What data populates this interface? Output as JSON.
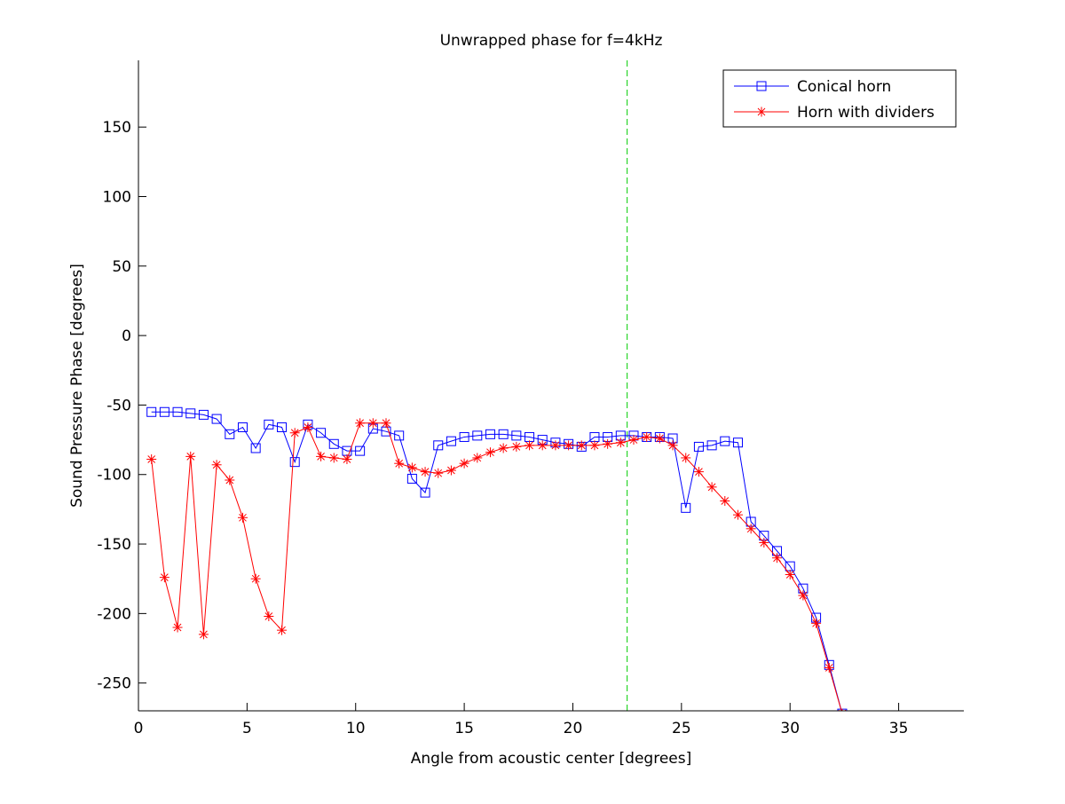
{
  "chart_data": {
    "type": "line",
    "title": "Unwrapped phase for f=4kHz",
    "xlabel": "Angle from acoustic center [degrees]",
    "ylabel": "Sound Pressure Phase [degrees]",
    "xlim": [
      0,
      38
    ],
    "ylim": [
      -270,
      198
    ],
    "xticks": [
      0,
      5,
      10,
      15,
      20,
      25,
      30,
      35
    ],
    "yticks": [
      -250,
      -200,
      -150,
      -100,
      -50,
      0,
      50,
      100,
      150
    ],
    "grid": false,
    "legend_position": "top-right",
    "vline": {
      "x": 22.5,
      "color": "#00cc00",
      "style": "dashed"
    },
    "series": [
      {
        "name": "Conical horn",
        "color": "#0000ff",
        "marker": "square",
        "x": [
          0.6,
          1.2,
          1.8,
          2.4,
          3.0,
          3.6,
          4.2,
          4.8,
          5.4,
          6.0,
          6.6,
          7.2,
          7.8,
          8.4,
          9.0,
          9.6,
          10.2,
          10.8,
          11.4,
          12.0,
          12.6,
          13.2,
          13.8,
          14.4,
          15.0,
          15.6,
          16.2,
          16.8,
          17.4,
          18.0,
          18.6,
          19.2,
          19.8,
          20.4,
          21.0,
          21.6,
          22.2,
          22.8,
          23.4,
          24.0,
          24.6,
          25.2,
          25.8,
          26.4,
          27.0,
          27.6,
          28.2,
          28.8,
          29.4,
          30.0,
          30.6,
          31.2,
          31.8,
          32.4
        ],
        "values": [
          -55,
          -55,
          -55,
          -56,
          -57,
          -60,
          -71,
          -66,
          -81,
          -64,
          -66,
          -91,
          -64,
          -70,
          -78,
          -83,
          -83,
          -67,
          -69,
          -72,
          -103,
          -113,
          -79,
          -76,
          -73,
          -72,
          -71,
          -71,
          -72,
          -73,
          -75,
          -77,
          -78,
          -80,
          -73,
          -73,
          -72,
          -72,
          -73,
          -73,
          -74,
          -124,
          -80,
          -79,
          -76,
          -77,
          -134,
          -144,
          -155,
          -166,
          -182,
          -203,
          -237,
          -272
        ]
      },
      {
        "name": "Horn with dividers",
        "color": "#ff0000",
        "marker": "star",
        "x": [
          0.6,
          1.2,
          1.8,
          2.4,
          3.0,
          3.6,
          4.2,
          4.8,
          5.4,
          6.0,
          6.6,
          7.2,
          7.8,
          8.4,
          9.0,
          9.6,
          10.2,
          10.8,
          11.4,
          12.0,
          12.6,
          13.2,
          13.8,
          14.4,
          15.0,
          15.6,
          16.2,
          16.8,
          17.4,
          18.0,
          18.6,
          19.2,
          19.8,
          20.4,
          21.0,
          21.6,
          22.2,
          22.8,
          23.4,
          24.0,
          24.6,
          25.2,
          25.8,
          26.4,
          27.0,
          27.6,
          28.2,
          28.8,
          29.4,
          30.0,
          30.6,
          31.2,
          31.8,
          32.4
        ],
        "values": [
          -89,
          -174,
          -210,
          -87,
          -215,
          -93,
          -104,
          -131,
          -175,
          -202,
          -212,
          -70,
          -66,
          -87,
          -88,
          -89,
          -63,
          -63,
          -63,
          -92,
          -95,
          -98,
          -99,
          -97,
          -92,
          -88,
          -84,
          -81,
          -80,
          -79,
          -79,
          -79,
          -79,
          -79,
          -79,
          -78,
          -77,
          -75,
          -73,
          -74,
          -79,
          -88,
          -98,
          -109,
          -119,
          -129,
          -139,
          -149,
          -160,
          -172,
          -187,
          -207,
          -239,
          -272
        ]
      }
    ]
  }
}
